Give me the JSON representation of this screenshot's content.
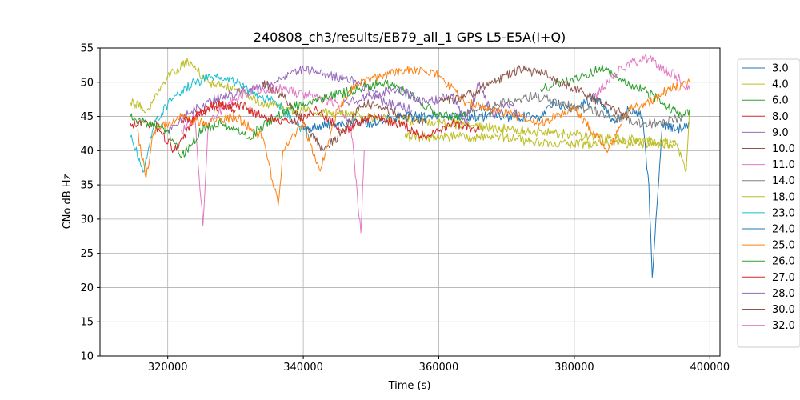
{
  "chart_data": {
    "type": "line",
    "title": "240808_ch3/results/EB79_all_1 GPS L5-E5A(I+Q)",
    "xlabel": "Time (s)",
    "ylabel": "CNo dB Hz",
    "xlim": [
      310000,
      401500
    ],
    "ylim": [
      10,
      55
    ],
    "xticks": [
      320000,
      340000,
      360000,
      380000,
      400000
    ],
    "xtick_labels": [
      "320000",
      "340000",
      "360000",
      "380000",
      "400000"
    ],
    "yticks": [
      10,
      15,
      20,
      25,
      30,
      35,
      40,
      45,
      50,
      55
    ],
    "ytick_labels": [
      "10",
      "15",
      "20",
      "25",
      "30",
      "35",
      "40",
      "45",
      "50",
      "55"
    ],
    "grid": true,
    "legend_placement": "outside-right",
    "series": [
      {
        "name": "3.0",
        "color": "#1f77b4",
        "x": [
          375000,
          377000,
          380000,
          383000,
          386000,
          388000,
          390000,
          391000,
          391500,
          393000,
          395000,
          397000
        ],
        "y": [
          45,
          47,
          46,
          48,
          44,
          46,
          45,
          35,
          21.5,
          44,
          43,
          44
        ]
      },
      {
        "name": "4.0",
        "color": "#bcbd22",
        "x": [
          314500,
          317000,
          320000,
          323000,
          326000,
          330000,
          334000,
          338000,
          395000,
          396500,
          397000
        ],
        "y": [
          47,
          46,
          51,
          53,
          50,
          49,
          47,
          46,
          41,
          37,
          46
        ]
      },
      {
        "name": "6.0",
        "color": "#2ca02c",
        "x": [
          375000,
          378000,
          381000,
          384000,
          387000,
          390000,
          393000,
          396000,
          397000
        ],
        "y": [
          49,
          50,
          51,
          52,
          50,
          49,
          47,
          45,
          46
        ]
      },
      {
        "name": "8.0",
        "color": "#d62728",
        "x": [
          314500,
          318000,
          321000,
          324000,
          327000,
          330000
        ],
        "y": [
          44,
          44,
          40,
          45,
          47,
          46
        ]
      },
      {
        "name": "9.0",
        "color": "#9467bd",
        "x": [
          320000,
          324000,
          328000,
          332000,
          336000,
          340000,
          344000,
          348000,
          352000,
          356000
        ],
        "y": [
          43,
          46,
          48,
          49,
          50,
          52,
          51,
          50,
          47,
          46
        ]
      },
      {
        "name": "10.0",
        "color": "#8c564b",
        "x": [
          334000,
          337000,
          340000,
          343000,
          346000,
          349000,
          352000,
          355000,
          358000
        ],
        "y": [
          50,
          48,
          44,
          40,
          43,
          47,
          46,
          45,
          44
        ]
      },
      {
        "name": "11.0",
        "color": "#e377c2",
        "x": [
          322000,
          324000,
          325200,
          326000,
          329000,
          333000,
          337000,
          341000,
          345000,
          347000,
          348500,
          349000
        ],
        "y": [
          43,
          45,
          29,
          44,
          47,
          49,
          49,
          48,
          47,
          44,
          28,
          40
        ]
      },
      {
        "name": "14.0",
        "color": "#7f7f7f",
        "x": [
          362000,
          366000,
          370000,
          374000,
          378000,
          382000,
          386000,
          390000,
          393000,
          396000
        ],
        "y": [
          45,
          46,
          47,
          48,
          47,
          46,
          45,
          44,
          44,
          45
        ]
      },
      {
        "name": "18.0",
        "color": "#bcbd22",
        "x": [
          355000,
          360000,
          365000,
          370000,
          375000,
          380000,
          385000,
          390000,
          395000
        ],
        "y": [
          42,
          42,
          42,
          42,
          41,
          41,
          41,
          41,
          41
        ]
      },
      {
        "name": "23.0",
        "color": "#17becf",
        "x": [
          314500,
          316500,
          318000,
          321000,
          324000,
          327000,
          330000,
          333000,
          336000,
          339000,
          341000
        ],
        "y": [
          42,
          37,
          44,
          48,
          50,
          51,
          50,
          48,
          47,
          44,
          42
        ]
      },
      {
        "name": "24.0",
        "color": "#1f77b4",
        "x": [
          340000,
          345000,
          350000,
          355000,
          360000,
          365000,
          370000,
          375000
        ],
        "y": [
          43,
          44,
          44,
          45,
          45,
          45,
          45,
          45
        ]
      },
      {
        "name": "25.0",
        "color": "#ff7f0e",
        "x": [
          315500,
          316800,
          318000,
          322000,
          326000,
          330000,
          334000,
          336300,
          337000,
          340000,
          342500,
          345000,
          348000,
          352000,
          356000,
          360000,
          364000,
          368000,
          372000,
          375000,
          380000,
          385000,
          388000,
          391000,
          394000,
          397000
        ],
        "y": [
          43,
          36,
          43,
          45,
          44,
          45,
          42,
          32,
          40,
          44,
          37,
          46,
          50,
          51,
          52,
          51,
          47,
          46,
          45,
          44,
          46,
          40,
          46,
          47,
          49,
          50
        ]
      },
      {
        "name": "26.0",
        "color": "#2ca02c",
        "x": [
          314500,
          317000,
          320000,
          322000,
          325000,
          328000,
          332000,
          336000,
          340000,
          344000,
          348000,
          352000,
          356000,
          360000,
          364000
        ],
        "y": [
          45,
          44,
          43,
          39,
          43,
          44,
          42,
          45,
          47,
          48,
          49,
          50,
          48,
          45,
          45
        ]
      },
      {
        "name": "27.0",
        "color": "#d62728",
        "x": [
          322000,
          326000,
          330000,
          334000,
          338000,
          342000,
          346000,
          350000,
          354000,
          358000,
          362000,
          366000
        ],
        "y": [
          44,
          46,
          47,
          45,
          44,
          46,
          43,
          45,
          44,
          42,
          44,
          43
        ]
      },
      {
        "name": "28.0",
        "color": "#9467bd",
        "x": [
          346000,
          350000,
          354000,
          358000,
          362000,
          364000,
          366000,
          368000,
          370000,
          372000
        ],
        "y": [
          47,
          48,
          49,
          47,
          48,
          44,
          50,
          45,
          47,
          45
        ]
      },
      {
        "name": "30.0",
        "color": "#8c564b",
        "x": [
          360000,
          364000,
          368000,
          372000,
          376000,
          380000,
          384000,
          388000
        ],
        "y": [
          47,
          48,
          50,
          52,
          51,
          49,
          47,
          45
        ]
      },
      {
        "name": "32.0",
        "color": "#e377c2",
        "x": [
          383000,
          385000,
          387000,
          389000,
          391000,
          393000,
          395000,
          397000
        ],
        "y": [
          48,
          50,
          52,
          53,
          53.5,
          52,
          51,
          49
        ]
      }
    ]
  }
}
